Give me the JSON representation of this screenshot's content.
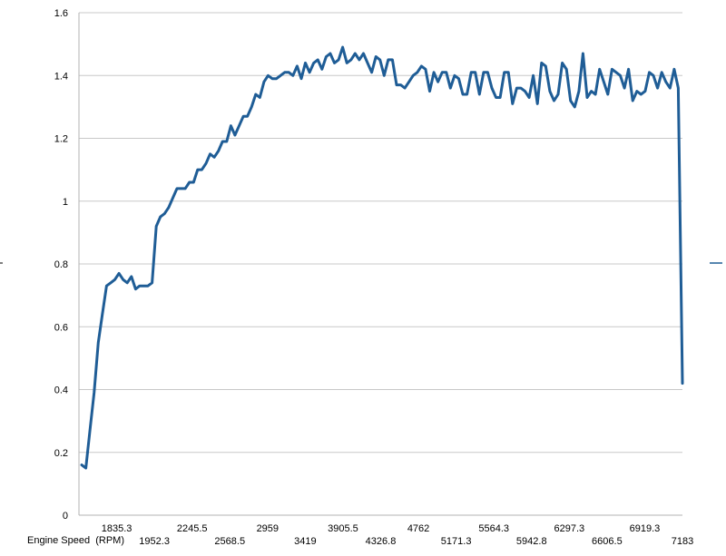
{
  "chart_data": {
    "type": "line",
    "title": "",
    "xlabel": "Engine Speed  (RPM)",
    "ylabel": "",
    "ylim": [
      0,
      1.6
    ],
    "yticks": [
      "0",
      "0.2",
      "0.4",
      "0.6",
      "0.8",
      "1",
      "1.2",
      "1.4",
      "1.6"
    ],
    "xtick_labels_upper": [
      "1835.3",
      "2245.5",
      "2959",
      "3905.5",
      "4762",
      "5564.3",
      "6297.3",
      "6919.3"
    ],
    "xtick_labels_lower": [
      "1952.3",
      "2568.5",
      "3419",
      "4326.8",
      "5171.3",
      "5942.8",
      "6606.5",
      "7183"
    ],
    "grid": true,
    "legend": "none",
    "series": [
      {
        "color": "#1f5d96",
        "values": [
          0.16,
          0.15,
          0.27,
          0.39,
          0.55,
          0.64,
          0.73,
          0.74,
          0.75,
          0.77,
          0.75,
          0.74,
          0.76,
          0.72,
          0.73,
          0.73,
          0.73,
          0.74,
          0.92,
          0.95,
          0.96,
          0.98,
          1.01,
          1.04,
          1.04,
          1.04,
          1.06,
          1.06,
          1.1,
          1.1,
          1.12,
          1.15,
          1.14,
          1.16,
          1.19,
          1.19,
          1.24,
          1.21,
          1.24,
          1.27,
          1.27,
          1.3,
          1.34,
          1.33,
          1.38,
          1.4,
          1.39,
          1.39,
          1.4,
          1.41,
          1.41,
          1.4,
          1.43,
          1.39,
          1.44,
          1.41,
          1.44,
          1.45,
          1.42,
          1.46,
          1.47,
          1.44,
          1.45,
          1.49,
          1.44,
          1.45,
          1.47,
          1.45,
          1.47,
          1.44,
          1.41,
          1.46,
          1.45,
          1.4,
          1.45,
          1.45,
          1.37,
          1.37,
          1.36,
          1.38,
          1.4,
          1.41,
          1.43,
          1.42,
          1.35,
          1.41,
          1.38,
          1.41,
          1.41,
          1.36,
          1.4,
          1.39,
          1.34,
          1.34,
          1.41,
          1.41,
          1.34,
          1.41,
          1.41,
          1.36,
          1.33,
          1.33,
          1.41,
          1.41,
          1.31,
          1.36,
          1.36,
          1.35,
          1.33,
          1.4,
          1.31,
          1.44,
          1.43,
          1.35,
          1.32,
          1.34,
          1.44,
          1.42,
          1.32,
          1.3,
          1.35,
          1.47,
          1.33,
          1.35,
          1.34,
          1.42,
          1.38,
          1.34,
          1.42,
          1.41,
          1.4,
          1.36,
          1.42,
          1.32,
          1.35,
          1.34,
          1.35,
          1.41,
          1.4,
          1.36,
          1.41,
          1.38,
          1.36,
          1.42,
          1.36,
          0.42
        ]
      }
    ]
  }
}
